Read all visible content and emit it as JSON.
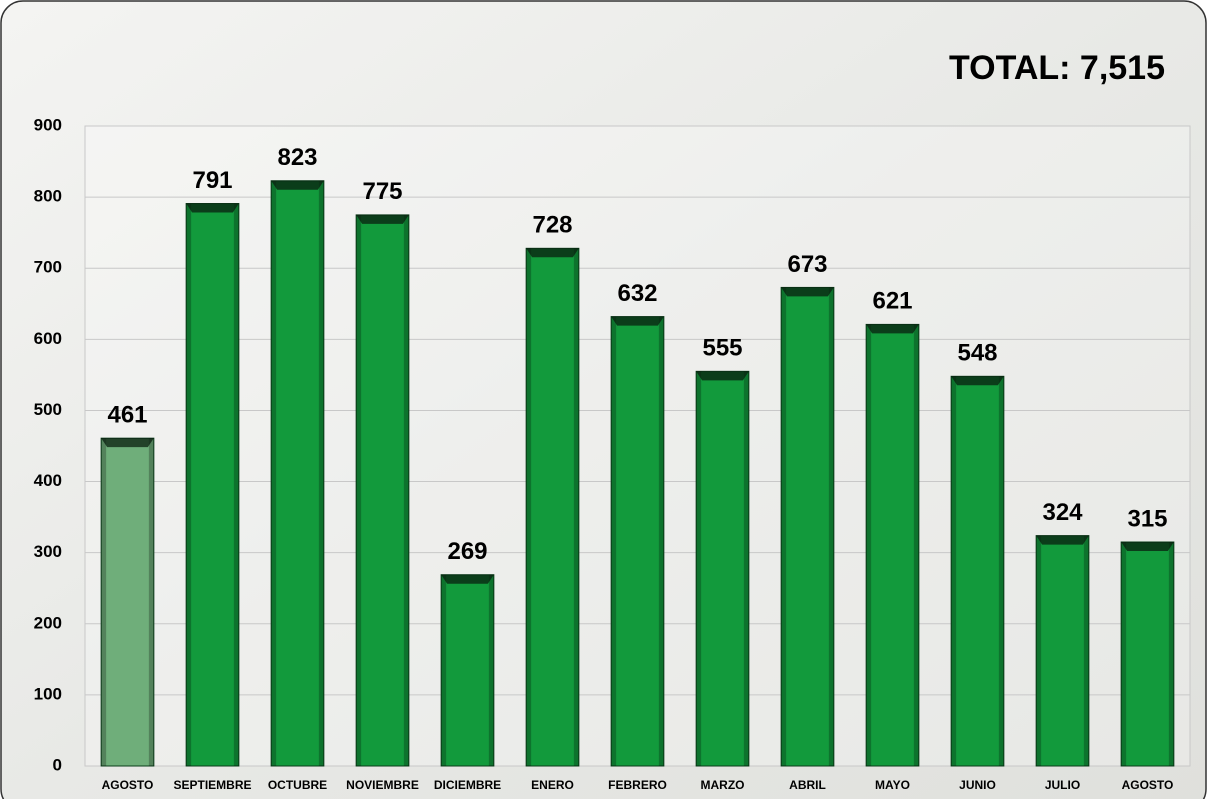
{
  "chart_data": {
    "type": "bar",
    "title": "TOTAL: 7,515",
    "categories": [
      "AGOSTO",
      "SEPTIEMBRE",
      "OCTUBRE",
      "NOVIEMBRE",
      "DICIEMBRE",
      "ENERO",
      "FEBRERO",
      "MARZO",
      "ABRIL",
      "MAYO",
      "JUNIO",
      "JULIO",
      "AGOSTO"
    ],
    "values": [
      461,
      791,
      823,
      775,
      269,
      728,
      632,
      555,
      673,
      621,
      548,
      324,
      315
    ],
    "colors": [
      "#6fae7a",
      "#129a3c",
      "#129a3c",
      "#129a3c",
      "#129a3c",
      "#129a3c",
      "#129a3c",
      "#129a3c",
      "#129a3c",
      "#129a3c",
      "#129a3c",
      "#129a3c",
      "#129a3c"
    ],
    "ylim": [
      0,
      900
    ],
    "yticks": [
      0,
      100,
      200,
      300,
      400,
      500,
      600,
      700,
      800,
      900
    ],
    "grid": true
  }
}
